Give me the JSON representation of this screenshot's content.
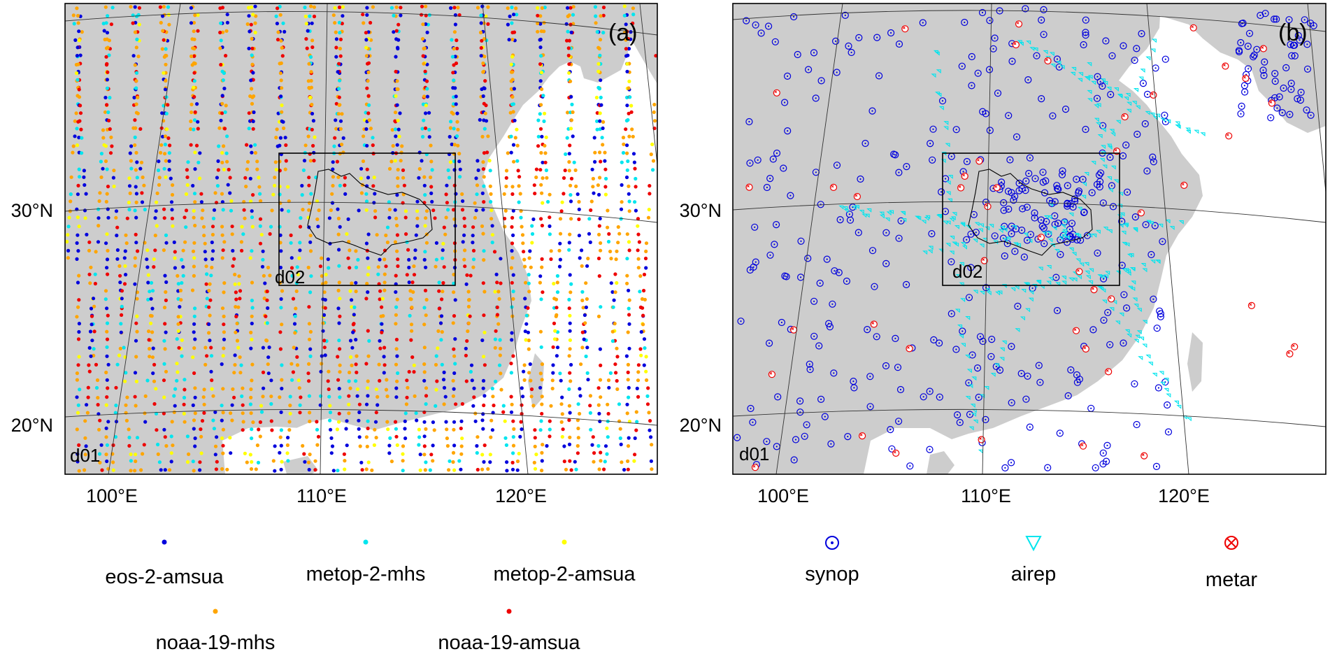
{
  "panels": [
    {
      "id": "a",
      "label": "(a)",
      "outer_domain": "d01",
      "inner_domain": "d02",
      "lat_labels": [
        "30°N",
        "20°N"
      ],
      "lon_labels": [
        "100°E",
        "110°E",
        "120°E"
      ],
      "legend": [
        {
          "name": "eos-2-amsua",
          "marker": "dot",
          "color": "#0000dd"
        },
        {
          "name": "metop-2-mhs",
          "marker": "dot",
          "color": "#00e5ee"
        },
        {
          "name": "metop-2-amsua",
          "marker": "dot",
          "color": "#ffff00"
        },
        {
          "name": "noaa-19-mhs",
          "marker": "dot",
          "color": "#ffa500"
        },
        {
          "name": "noaa-19-amsua",
          "marker": "dot",
          "color": "#ee0000"
        }
      ]
    },
    {
      "id": "b",
      "label": "(b)",
      "outer_domain": "d01",
      "inner_domain": "d02",
      "lat_labels": [
        "30°N",
        "20°N"
      ],
      "lon_labels": [
        "100°E",
        "110°E",
        "120°E"
      ],
      "legend": [
        {
          "name": "synop",
          "marker": "circle-dot",
          "color": "#0000dd"
        },
        {
          "name": "airep",
          "marker": "triangle-down",
          "color": "#00e5ee"
        },
        {
          "name": "metar",
          "marker": "circle-x",
          "color": "#ee0000"
        }
      ]
    }
  ],
  "colors": {
    "land": "#cdcdcd",
    "sea": "#ffffff",
    "frame": "#000000",
    "gridline": "#333333"
  }
}
